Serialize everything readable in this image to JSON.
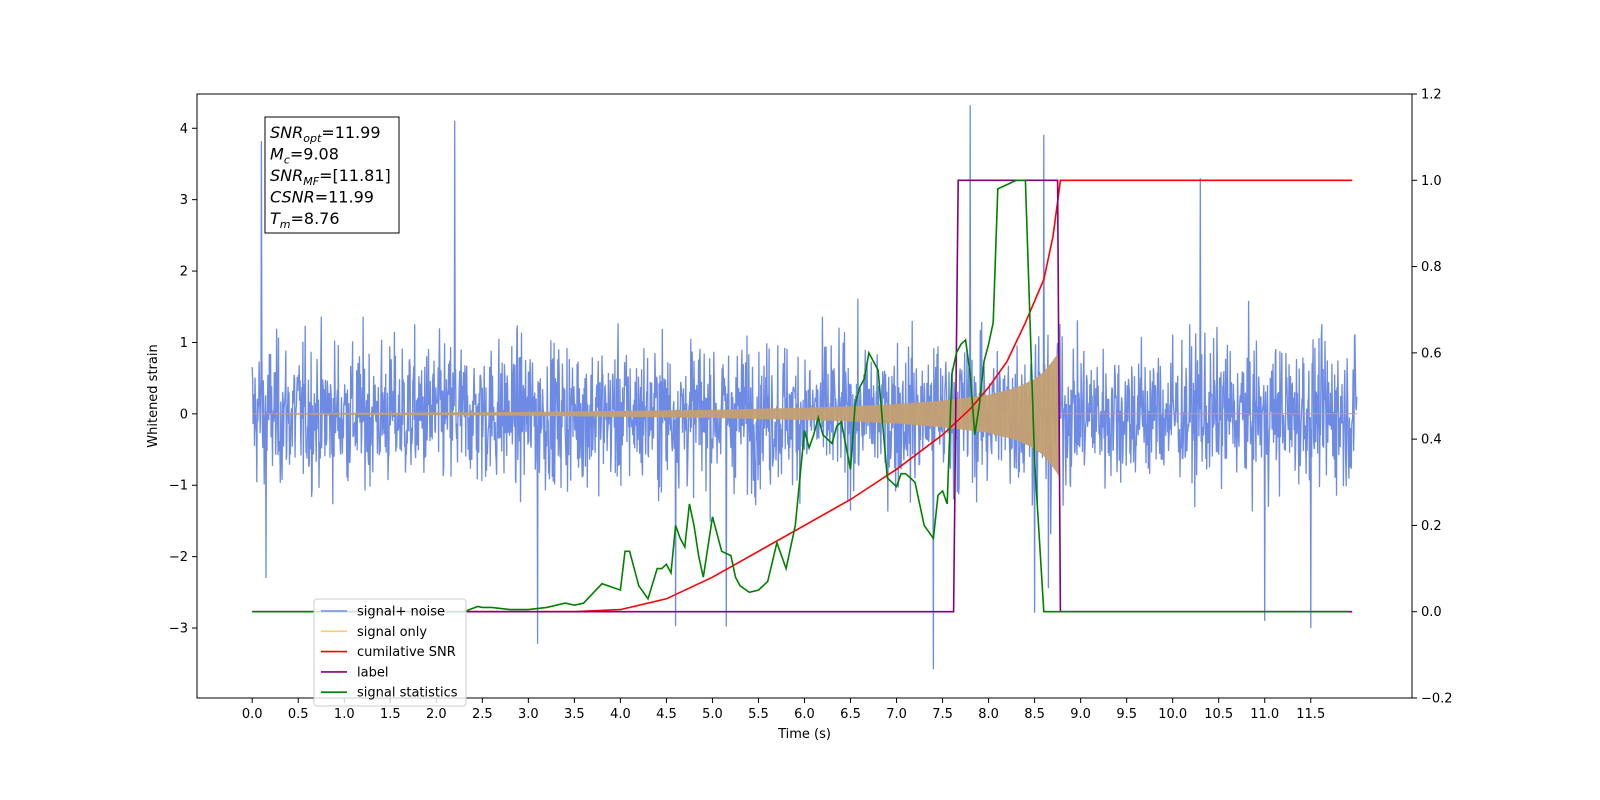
{
  "chart_data": {
    "type": "line",
    "title": "",
    "xlabel": "Time (s)",
    "ylabel": "Whitened strain",
    "y2label": "",
    "xlim": [
      -0.6,
      12.6
    ],
    "ylim": [
      -3.98,
      4.48
    ],
    "y2lim": [
      -0.2,
      1.2
    ],
    "xticks": [
      "0.0",
      "0.5",
      "1.0",
      "1.5",
      "2.0",
      "2.5",
      "3.0",
      "3.5",
      "4.0",
      "4.5",
      "5.0",
      "5.5",
      "6.0",
      "6.5",
      "7.0",
      "7.5",
      "8.0",
      "8.5",
      "9.0",
      "9.5",
      "10.0",
      "10.5",
      "11.0",
      "11.5"
    ],
    "yticks": [
      -3,
      -2,
      -1,
      0,
      1,
      2,
      3,
      4
    ],
    "yticks_labels": [
      "−3",
      "−2",
      "−1",
      "0",
      "1",
      "2",
      "3",
      "4"
    ],
    "y2ticks": [
      "−0.2",
      "0.0",
      "0.2",
      "0.4",
      "0.6",
      "0.8",
      "1.0",
      "1.2"
    ],
    "y2ticks_values": [
      -0.2,
      0.0,
      0.2,
      0.4,
      0.6,
      0.8,
      1.0,
      1.2
    ],
    "grid": false,
    "legend_position": "lower-left",
    "info_box": {
      "lines": [
        {
          "sym": "SNR",
          "sub": "opt",
          "val": "=11.99"
        },
        {
          "sym": "M",
          "sub": "c",
          "val": "=9.08"
        },
        {
          "sym": "SNR",
          "sub": "MF",
          "val": "=[11.81]"
        },
        {
          "sym": "CSNR",
          "sub": "",
          "val": "=11.99"
        },
        {
          "sym": "T",
          "sub": "m",
          "val": "=8.76"
        }
      ]
    },
    "series": [
      {
        "name": "signal+ noise",
        "color": "#6d8be4",
        "axis": "left",
        "noise_amplitude": 1.2,
        "duration": 12.0,
        "spikes": [
          [
            0.1,
            3.82
          ],
          [
            0.15,
            -2.3
          ],
          [
            2.2,
            4.1
          ],
          [
            3.1,
            -3.2
          ],
          [
            4.6,
            -3.0
          ],
          [
            5.15,
            -3.0
          ],
          [
            7.4,
            -3.55
          ],
          [
            7.8,
            4.1
          ],
          [
            8.5,
            -3.2
          ],
          [
            8.6,
            3.35
          ],
          [
            8.65,
            -3.1
          ],
          [
            10.3,
            3.3
          ],
          [
            11.5,
            -3.0
          ],
          [
            11.0,
            -2.9
          ]
        ]
      },
      {
        "name": "signal only",
        "color": "#c4a073",
        "axis": "left",
        "envelope": [
          [
            0.0,
            0.0
          ],
          [
            3.0,
            0.02
          ],
          [
            5.0,
            0.05
          ],
          [
            6.0,
            0.08
          ],
          [
            6.5,
            0.1
          ],
          [
            7.0,
            0.13
          ],
          [
            7.5,
            0.18
          ],
          [
            8.0,
            0.26
          ],
          [
            8.3,
            0.36
          ],
          [
            8.5,
            0.48
          ],
          [
            8.6,
            0.58
          ],
          [
            8.7,
            0.74
          ],
          [
            8.76,
            0.85
          ],
          [
            8.77,
            0.0
          ],
          [
            12.0,
            0.0
          ]
        ]
      },
      {
        "name": "cumilative SNR",
        "color": "#ff0000",
        "axis": "right",
        "x": [
          2.3,
          3.5,
          4.0,
          4.5,
          5.0,
          5.5,
          6.0,
          6.5,
          7.0,
          7.5,
          7.8,
          8.0,
          8.2,
          8.4,
          8.6,
          8.7,
          8.75,
          8.78,
          11.95
        ],
        "y": [
          0.0,
          0.0,
          0.005,
          0.03,
          0.08,
          0.14,
          0.2,
          0.26,
          0.33,
          0.41,
          0.47,
          0.52,
          0.58,
          0.67,
          0.77,
          0.87,
          0.95,
          1.0,
          1.0
        ]
      },
      {
        "name": "label",
        "color": "#800080",
        "axis": "right",
        "x": [
          0.0,
          7.62,
          7.67,
          8.75,
          8.78,
          11.95
        ],
        "y": [
          0.0,
          0.0,
          1.0,
          1.0,
          0.0,
          0.0
        ]
      },
      {
        "name": "signal statistics",
        "color": "#008000",
        "axis": "right",
        "x": [
          0.0,
          2.3,
          2.45,
          2.5,
          2.6,
          2.8,
          3.0,
          3.2,
          3.4,
          3.5,
          3.6,
          3.8,
          4.0,
          4.05,
          4.1,
          4.2,
          4.3,
          4.4,
          4.45,
          4.5,
          4.55,
          4.6,
          4.65,
          4.7,
          4.75,
          4.8,
          4.85,
          4.9,
          5.0,
          5.1,
          5.2,
          5.25,
          5.3,
          5.4,
          5.5,
          5.6,
          5.7,
          5.75,
          5.8,
          5.9,
          6.0,
          6.05,
          6.1,
          6.15,
          6.2,
          6.3,
          6.35,
          6.4,
          6.5,
          6.55,
          6.6,
          6.65,
          6.7,
          6.8,
          6.9,
          7.0,
          7.05,
          7.1,
          7.2,
          7.3,
          7.4,
          7.45,
          7.5,
          7.55,
          7.6,
          7.65,
          7.7,
          7.75,
          7.8,
          7.85,
          7.9,
          7.95,
          8.0,
          8.05,
          8.1,
          8.2,
          8.3,
          8.4,
          8.5,
          8.6,
          8.65,
          8.7,
          8.75,
          8.78,
          8.83,
          11.9
        ],
        "y": [
          0.0,
          0.0,
          0.012,
          0.01,
          0.01,
          0.005,
          0.005,
          0.01,
          0.02,
          0.015,
          0.02,
          0.065,
          0.05,
          0.14,
          0.14,
          0.06,
          0.03,
          0.1,
          0.1,
          0.11,
          0.09,
          0.2,
          0.17,
          0.15,
          0.25,
          0.2,
          0.13,
          0.08,
          0.22,
          0.14,
          0.13,
          0.08,
          0.06,
          0.045,
          0.05,
          0.07,
          0.16,
          0.13,
          0.1,
          0.2,
          0.42,
          0.38,
          0.41,
          0.45,
          0.41,
          0.39,
          0.43,
          0.44,
          0.33,
          0.48,
          0.52,
          0.54,
          0.6,
          0.56,
          0.31,
          0.29,
          0.32,
          0.32,
          0.3,
          0.2,
          0.17,
          0.27,
          0.28,
          0.25,
          0.55,
          0.6,
          0.62,
          0.63,
          0.55,
          0.41,
          0.48,
          0.58,
          0.62,
          0.67,
          0.98,
          0.99,
          1.0,
          1.0,
          0.35,
          0.0,
          0.0,
          0.0,
          0.0,
          0.0,
          0.0,
          0.0
        ]
      }
    ]
  }
}
